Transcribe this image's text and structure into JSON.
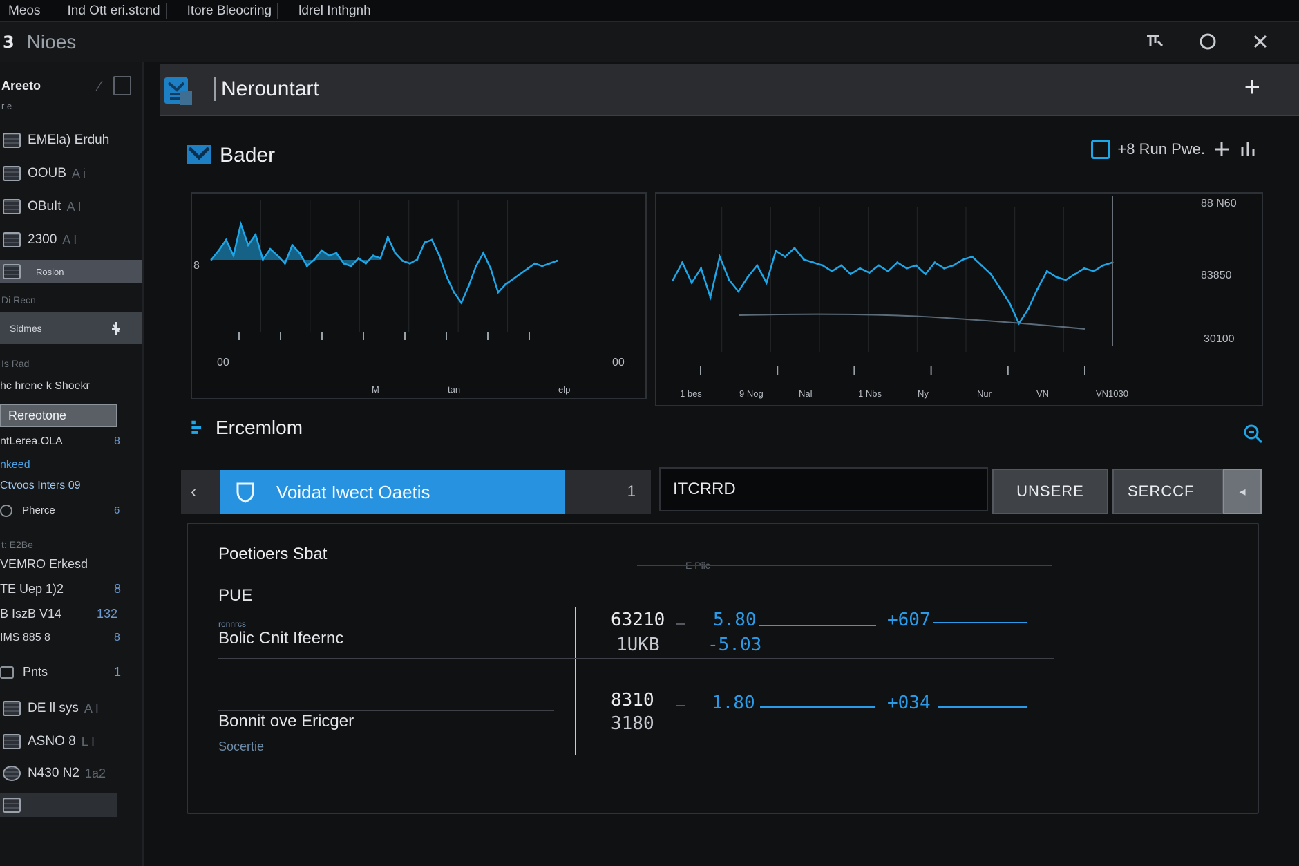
{
  "menubar": {
    "items": [
      "Meos",
      "Ind Ott eri.stcnd",
      "Itore Bleocring",
      "ldrel Inthgnh"
    ]
  },
  "titlebar": {
    "glyph": "3",
    "title": "Nioes"
  },
  "sidebar": {
    "header_title": "Areeto",
    "header_sub": "r e",
    "items": [
      {
        "label": "EMEla) Erduh"
      },
      {
        "label": "OOUB",
        "tail": "A i"
      },
      {
        "label": "OBuIt",
        "tail": "A I"
      },
      {
        "label": "2300",
        "tail": "A I"
      },
      {
        "label": "Rosion"
      }
    ],
    "section_1": "Di Recn",
    "active_item": "Sidmes",
    "section_2": "Is Rad",
    "text_1": "hc hrene k Shoekr",
    "button": "Rereotone",
    "text_2": "ntLerea.OLA",
    "text_2_num": "8",
    "text_3": "nkeed",
    "text_4": "Ctvoos Inters 09",
    "text_5": "Pherce",
    "text_5_num": "6",
    "section_3": "t: E2Be",
    "text_6": "VEMRO Erkesd",
    "text_7": "TE Uep 1)2",
    "text_7_num": "8",
    "text_8": "B IszB V14",
    "text_8_num": "132",
    "text_9": "IMS 885 8",
    "text_9_num": "8",
    "text_10": "Pnts",
    "text_10_num": "1",
    "items_2": [
      {
        "label": "DE ll sys",
        "tail": "A I"
      },
      {
        "label": "ASNO 8",
        "tail": "L I"
      },
      {
        "label": "N430 N2",
        "tail": "1a2"
      }
    ]
  },
  "tab": {
    "title": "Nerountart",
    "plus": "+"
  },
  "chart_section": {
    "title": "Bader",
    "tools_label": "+8 Run Pwe.",
    "chart_data": [
      {
        "type": "line",
        "series": [
          {
            "values": [
              0.55,
              0.62,
              0.7,
              0.58,
              0.82,
              0.66,
              0.74,
              0.55,
              0.63,
              0.58,
              0.52,
              0.66,
              0.6,
              0.5,
              0.55,
              0.62,
              0.58,
              0.6,
              0.52,
              0.5,
              0.56,
              0.52,
              0.58,
              0.56,
              0.72,
              0.6,
              0.54,
              0.52,
              0.55,
              0.68,
              0.7,
              0.58,
              0.42,
              0.3,
              0.22,
              0.35,
              0.5,
              0.6,
              0.48,
              0.3,
              0.36,
              0.4,
              0.44,
              0.48,
              0.52,
              0.5,
              0.52,
              0.54
            ]
          }
        ],
        "xlabel": "",
        "ylabel": "",
        "ytick_left": "8",
        "xtick_start": "00",
        "xtick_end": "00",
        "xtick_labels": [
          "M",
          "tan",
          "elp"
        ]
      },
      {
        "type": "line",
        "series": [
          {
            "values": [
              0.5,
              0.62,
              0.48,
              0.58,
              0.38,
              0.66,
              0.5,
              0.42,
              0.52,
              0.6,
              0.48,
              0.7,
              0.66,
              0.72,
              0.64,
              0.62,
              0.6,
              0.56,
              0.6,
              0.54,
              0.58,
              0.55,
              0.6,
              0.56,
              0.62,
              0.58,
              0.6,
              0.54,
              0.62,
              0.58,
              0.6,
              0.64,
              0.66,
              0.6,
              0.54,
              0.44,
              0.34,
              0.2,
              0.3,
              0.44,
              0.56,
              0.52,
              0.5,
              0.54,
              0.58,
              0.56,
              0.6,
              0.62
            ]
          }
        ],
        "xlabel": "",
        "ylabel": "",
        "yticks_right": [
          "88 N60",
          "83850",
          "30100"
        ],
        "xtick_labels": [
          "1 bes",
          "9 Nog",
          "Nal",
          "1 Nbs",
          "Ny",
          "Nur",
          "VN",
          "VN1030"
        ]
      }
    ]
  },
  "filter_section": {
    "title": "Ercemlom",
    "selected_filter": "Voidat Iwect Oaetis",
    "count": "1",
    "search_value": "ITCRRD",
    "button_1": "UNSERE",
    "button_2": "SERCCF"
  },
  "summary": {
    "title": "Poetioers Sbat",
    "header_pill": "E Piic",
    "rows": [
      {
        "label": "PUE"
      },
      {
        "label": "Bolic Cnit Ifeernc",
        "sub": "ronnrcs"
      },
      {
        "label": "Bonnit ove Ericger",
        "sub": "Socertie"
      }
    ],
    "values_row1": {
      "a": "63210",
      "b": "1UKB",
      "c": "5.80",
      "d": "-5.03",
      "e": "+607"
    },
    "values_row2": {
      "a": "8310",
      "b": "3180",
      "c": "1.80",
      "e": "+034"
    }
  },
  "colors": {
    "accent": "#2793e0",
    "line": "#1ea7e8",
    "background": "#101113"
  }
}
